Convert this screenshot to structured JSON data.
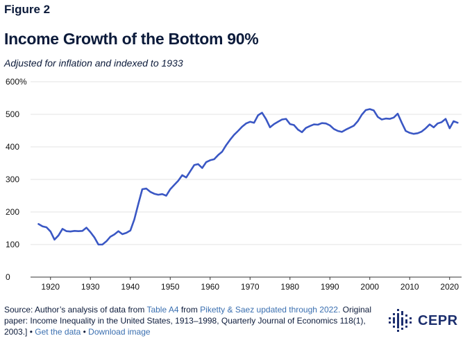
{
  "figure_label": "Figure 2",
  "title": "Income Growth of the Bottom 90%",
  "subtitle": "Adjusted for inflation and indexed to 1933",
  "colors": {
    "line": "#3a57c4",
    "grid": "#e3e3e3",
    "text": "#0b1a3a",
    "link": "#3a6fb0",
    "logo": "#1c2f6e"
  },
  "footer": {
    "part1": "Source: Author’s analysis of data from ",
    "link1": "Table A4",
    "part2": " from ",
    "link2": "Piketty & Saez updated through 2022.",
    "part3": " Original paper: Income Inequality in the United States, 1913–1998, Quarterly Journal of Economics 118(1), 2003.] • ",
    "link3": "Get the data",
    "sep": " • ",
    "link4": "Download image"
  },
  "logo": {
    "text": "CEPR",
    "icon": "cepr-logo-icon"
  },
  "chart_data": {
    "type": "line",
    "title": "Income Growth of the Bottom 90%",
    "subtitle": "Adjusted for inflation and indexed to 1933",
    "xlabel": "",
    "ylabel": "",
    "xlim": [
      1915,
      2023
    ],
    "ylim": [
      0,
      600
    ],
    "x_ticks": [
      1920,
      1930,
      1940,
      1950,
      1960,
      1970,
      1980,
      1990,
      2000,
      2010,
      2020
    ],
    "y_ticks": [
      0,
      100,
      200,
      300,
      400,
      500,
      600
    ],
    "y_tick_labels": [
      "0",
      "100",
      "200",
      "300",
      "400",
      "500",
      "600%"
    ],
    "grid": "horizontal",
    "series": [
      {
        "name": "",
        "x": [
          1917,
          1918,
          1919,
          1920,
          1921,
          1922,
          1923,
          1924,
          1925,
          1926,
          1927,
          1928,
          1929,
          1930,
          1931,
          1932,
          1933,
          1934,
          1935,
          1936,
          1937,
          1938,
          1939,
          1940,
          1941,
          1942,
          1943,
          1944,
          1945,
          1946,
          1947,
          1948,
          1949,
          1950,
          1951,
          1952,
          1953,
          1954,
          1955,
          1956,
          1957,
          1958,
          1959,
          1960,
          1961,
          1962,
          1963,
          1964,
          1965,
          1966,
          1967,
          1968,
          1969,
          1970,
          1971,
          1972,
          1973,
          1974,
          1975,
          1976,
          1977,
          1978,
          1979,
          1980,
          1981,
          1982,
          1983,
          1984,
          1985,
          1986,
          1987,
          1988,
          1989,
          1990,
          1991,
          1992,
          1993,
          1994,
          1995,
          1996,
          1997,
          1998,
          1999,
          2000,
          2001,
          2002,
          2003,
          2004,
          2005,
          2006,
          2007,
          2008,
          2009,
          2010,
          2011,
          2012,
          2013,
          2014,
          2015,
          2016,
          2017,
          2018,
          2019,
          2020,
          2021,
          2022
        ],
        "y": [
          163,
          156,
          153,
          140,
          115,
          128,
          148,
          141,
          140,
          142,
          141,
          142,
          152,
          138,
          122,
          100,
          100,
          110,
          124,
          131,
          141,
          132,
          136,
          143,
          177,
          225,
          270,
          272,
          262,
          256,
          253,
          255,
          250,
          270,
          283,
          296,
          313,
          306,
          325,
          344,
          347,
          335,
          353,
          359,
          362,
          375,
          385,
          405,
          422,
          437,
          449,
          462,
          472,
          477,
          474,
          497,
          505,
          485,
          460,
          470,
          477,
          484,
          486,
          470,
          467,
          453,
          445,
          458,
          464,
          469,
          468,
          473,
          472,
          466,
          455,
          449,
          446,
          453,
          459,
          465,
          479,
          499,
          513,
          516,
          512,
          492,
          484,
          487,
          486,
          490,
          502,
          474,
          449,
          443,
          440,
          442,
          447,
          457,
          469,
          460,
          472,
          476,
          486,
          457,
          479,
          474
        ]
      }
    ]
  }
}
